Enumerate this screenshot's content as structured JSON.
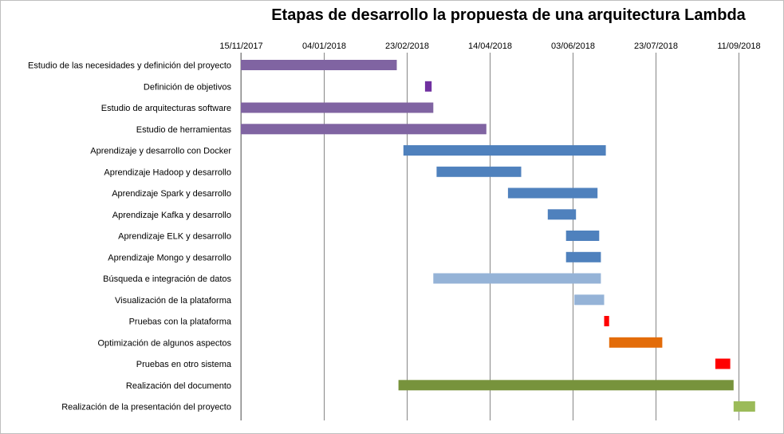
{
  "chart_data": {
    "type": "bar",
    "orientation": "horizontal-gantt",
    "title": "Etapas de desarrollo la propuesta de una arquitectura Lambda",
    "xlabel": "",
    "ylabel": "",
    "x_axis_position": "top",
    "grid": "vertical",
    "x_ticks": [
      "15/11/2017",
      "04/01/2018",
      "23/02/2018",
      "14/04/2018",
      "03/06/2018",
      "23/07/2018",
      "11/09/2018"
    ],
    "xlim": [
      "15/11/2017",
      "15/09/2018"
    ],
    "tasks": [
      {
        "label": "Estudio de las necesidades y definición del proyecto",
        "start": "15/11/2017",
        "end": "17/02/2018",
        "color": "#8064a2"
      },
      {
        "label": "Definición de objetivos",
        "start": "06/03/2018",
        "end": "10/03/2018",
        "color": "#7030a0"
      },
      {
        "label": "Estudio de arquitecturas software",
        "start": "15/11/2017",
        "end": "11/03/2018",
        "color": "#8064a2"
      },
      {
        "label": "Estudio de herramientas",
        "start": "15/11/2017",
        "end": "12/04/2018",
        "color": "#8064a2"
      },
      {
        "label": "Aprendizaje y desarrollo con Docker",
        "start": "21/02/2018",
        "end": "23/06/2018",
        "color": "#4f81bd"
      },
      {
        "label": "Aprendizaje Hadoop y desarrollo",
        "start": "13/03/2018",
        "end": "03/05/2018",
        "color": "#4f81bd"
      },
      {
        "label": "Aprendizaje Spark y desarrollo",
        "start": "25/04/2018",
        "end": "18/06/2018",
        "color": "#4f81bd"
      },
      {
        "label": "Aprendizaje Kafka y desarrollo",
        "start": "19/05/2018",
        "end": "05/06/2018",
        "color": "#4f81bd"
      },
      {
        "label": "Aprendizaje ELK y desarrollo",
        "start": "30/05/2018",
        "end": "19/06/2018",
        "color": "#4f81bd"
      },
      {
        "label": "Aprendizaje Mongo y desarrollo",
        "start": "30/05/2018",
        "end": "20/06/2018",
        "color": "#4f81bd"
      },
      {
        "label": "Búsqueda e integración de datos",
        "start": "11/03/2018",
        "end": "20/06/2018",
        "color": "#95b3d7"
      },
      {
        "label": "Visualización de la plataforma",
        "start": "04/06/2018",
        "end": "22/06/2018",
        "color": "#95b3d7"
      },
      {
        "label": "Pruebas con la plataforma",
        "start": "22/06/2018",
        "end": "25/06/2018",
        "color": "#ff0000"
      },
      {
        "label": "Optimización de algunos aspectos",
        "start": "25/06/2018",
        "end": "27/07/2018",
        "color": "#e36c09"
      },
      {
        "label": "Pruebas en otro sistema",
        "start": "28/08/2018",
        "end": "06/09/2018",
        "color": "#ff0000"
      },
      {
        "label": "Realización del documento",
        "start": "18/02/2018",
        "end": "08/09/2018",
        "color": "#77933c"
      },
      {
        "label": "Realización de la presentación del proyecto",
        "start": "08/09/2018",
        "end": "21/09/2018",
        "color": "#9bbb59"
      }
    ]
  }
}
